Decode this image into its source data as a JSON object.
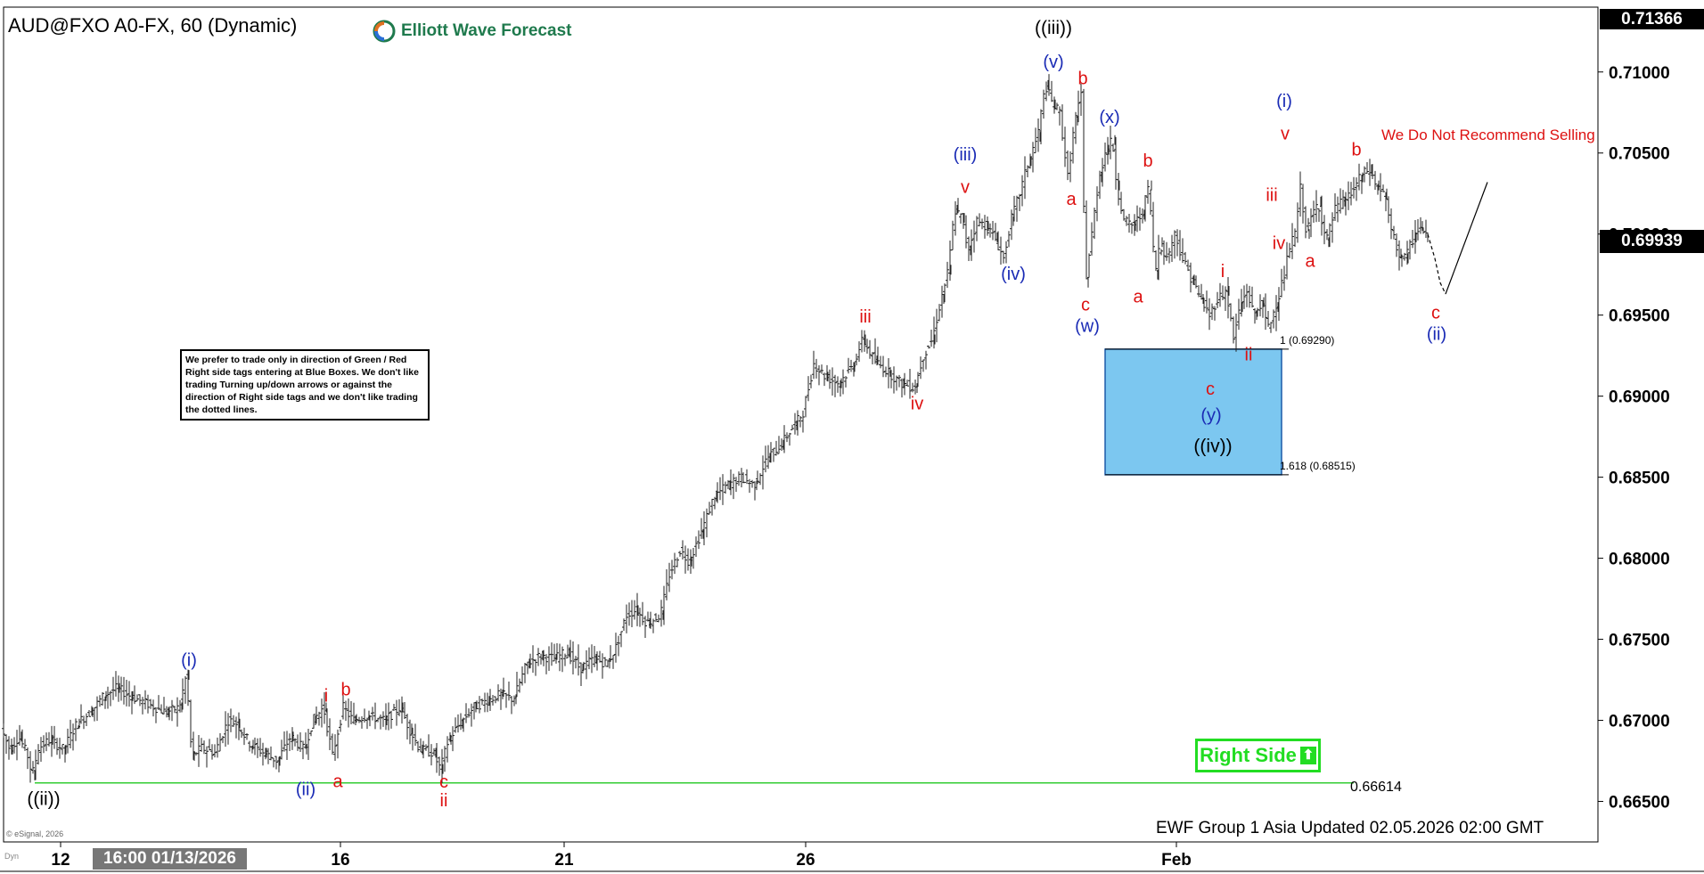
{
  "header": {
    "title": "AUD@FXO A0-FX, 60 (Dynamic)",
    "logo_text": "Elliott Wave Forecast"
  },
  "notice": {
    "text": "We prefer to trade only in direction of Green / Red Right side tags entering at Blue Boxes. We don't like trading Turning up/down arrows or against the direction of Right side tags and we don't like trading the dotted lines."
  },
  "footer": {
    "update_text": "EWF Group 1 Asia Updated 02.05.2026 02:00 GMT",
    "copyright": "© eSignal, 2026",
    "dyn_label": "Dyn"
  },
  "right_side": {
    "label": "Right Side",
    "color": "#22dd22"
  },
  "recommendation": {
    "text": "We Do Not Recommend Selling",
    "color": "#dd1111"
  },
  "price_axis": {
    "top_price": "0.71366",
    "current_price": "0.69939"
  },
  "time_axis": {
    "highlight_label": "16:00 01/13/2026"
  },
  "fib_levels": {
    "level_1": "1 (0.69290)",
    "level_1618": "1.618 (0.68515)",
    "support_label": "0.66614"
  },
  "colors": {
    "blue_label": "#1a2bb5",
    "red_label": "#dd1111",
    "black_label": "#000000",
    "blue_box_fill": "#7cc7f0",
    "blue_box_border": "#1b5aa8",
    "support_line": "#33cc33",
    "candles": "#222222"
  },
  "chart_data": {
    "type": "ohlc",
    "symbol": "AUD@FXO A0-FX",
    "interval": "60",
    "ylim": [
      0.6625,
      0.714
    ],
    "yticks": [
      0.665,
      0.67,
      0.675,
      0.68,
      0.685,
      0.69,
      0.695,
      0.7,
      0.705,
      0.71
    ],
    "ytick_labels": [
      "0.66500",
      "0.67000",
      "0.67500",
      "0.68000",
      "0.68500",
      "0.69000",
      "0.69500",
      "0.70000",
      "0.70500",
      "0.71000"
    ],
    "xticks": [
      "12",
      "16",
      "21",
      "26",
      "Feb"
    ],
    "price_path": [
      [
        0,
        0.6695
      ],
      [
        10,
        0.6682
      ],
      [
        20,
        0.669
      ],
      [
        30,
        0.6678
      ],
      [
        35,
        0.6666
      ],
      [
        42,
        0.6683
      ],
      [
        55,
        0.6688
      ],
      [
        70,
        0.6682
      ],
      [
        85,
        0.6698
      ],
      [
        100,
        0.6705
      ],
      [
        115,
        0.6715
      ],
      [
        130,
        0.672
      ],
      [
        145,
        0.6715
      ],
      [
        165,
        0.671
      ],
      [
        185,
        0.6705
      ],
      [
        200,
        0.6708
      ],
      [
        208,
        0.6728
      ],
      [
        214,
        0.6678
      ],
      [
        225,
        0.6683
      ],
      [
        240,
        0.668
      ],
      [
        255,
        0.67
      ],
      [
        265,
        0.6698
      ],
      [
        280,
        0.6685
      ],
      [
        295,
        0.668
      ],
      [
        310,
        0.6675
      ],
      [
        325,
        0.669
      ],
      [
        340,
        0.6682
      ],
      [
        350,
        0.67
      ],
      [
        362,
        0.6708
      ],
      [
        372,
        0.6678
      ],
      [
        384,
        0.6708
      ],
      [
        395,
        0.67
      ],
      [
        410,
        0.6703
      ],
      [
        430,
        0.67
      ],
      [
        448,
        0.6708
      ],
      [
        458,
        0.6695
      ],
      [
        470,
        0.6682
      ],
      [
        485,
        0.668
      ],
      [
        493,
        0.667
      ],
      [
        502,
        0.6688
      ],
      [
        515,
        0.6698
      ],
      [
        530,
        0.6708
      ],
      [
        545,
        0.6712
      ],
      [
        560,
        0.6716
      ],
      [
        575,
        0.6713
      ],
      [
        590,
        0.6735
      ],
      [
        605,
        0.674
      ],
      [
        620,
        0.6738
      ],
      [
        635,
        0.6742
      ],
      [
        650,
        0.6732
      ],
      [
        665,
        0.6738
      ],
      [
        680,
        0.6735
      ],
      [
        690,
        0.6745
      ],
      [
        702,
        0.6765
      ],
      [
        712,
        0.6768
      ],
      [
        725,
        0.676
      ],
      [
        740,
        0.6765
      ],
      [
        750,
        0.679
      ],
      [
        762,
        0.6805
      ],
      [
        772,
        0.6798
      ],
      [
        785,
        0.6815
      ],
      [
        800,
        0.6838
      ],
      [
        815,
        0.6845
      ],
      [
        830,
        0.685
      ],
      [
        845,
        0.6845
      ],
      [
        860,
        0.6862
      ],
      [
        875,
        0.687
      ],
      [
        890,
        0.6882
      ],
      [
        900,
        0.689
      ],
      [
        912,
        0.692
      ],
      [
        925,
        0.6912
      ],
      [
        940,
        0.6908
      ],
      [
        955,
        0.6918
      ],
      [
        967,
        0.6935
      ],
      [
        980,
        0.6922
      ],
      [
        995,
        0.6915
      ],
      [
        1010,
        0.6908
      ],
      [
        1025,
        0.6905
      ],
      [
        1035,
        0.6925
      ],
      [
        1045,
        0.6935
      ],
      [
        1055,
        0.696
      ],
      [
        1063,
        0.6978
      ],
      [
        1070,
        0.7015
      ],
      [
        1078,
        0.701
      ],
      [
        1085,
        0.699
      ],
      [
        1095,
        0.7008
      ],
      [
        1105,
        0.7005
      ],
      [
        1115,
        0.6998
      ],
      [
        1125,
        0.6985
      ],
      [
        1133,
        0.7008
      ],
      [
        1143,
        0.7025
      ],
      [
        1153,
        0.7045
      ],
      [
        1163,
        0.706
      ],
      [
        1172,
        0.7092
      ],
      [
        1180,
        0.708
      ],
      [
        1188,
        0.7075
      ],
      [
        1197,
        0.7035
      ],
      [
        1205,
        0.707
      ],
      [
        1212,
        0.7085
      ],
      [
        1217,
        0.697
      ],
      [
        1224,
        0.7
      ],
      [
        1232,
        0.7035
      ],
      [
        1240,
        0.7052
      ],
      [
        1247,
        0.7058
      ],
      [
        1252,
        0.703
      ],
      [
        1260,
        0.7008
      ],
      [
        1270,
        0.7005
      ],
      [
        1280,
        0.7012
      ],
      [
        1288,
        0.703
      ],
      [
        1295,
        0.6975
      ],
      [
        1300,
        0.6995
      ],
      [
        1308,
        0.6985
      ],
      [
        1317,
        0.7
      ],
      [
        1326,
        0.6985
      ],
      [
        1336,
        0.6972
      ],
      [
        1346,
        0.696
      ],
      [
        1356,
        0.695
      ],
      [
        1365,
        0.696
      ],
      [
        1375,
        0.6965
      ],
      [
        1383,
        0.6935
      ],
      [
        1390,
        0.6955
      ],
      [
        1398,
        0.6965
      ],
      [
        1406,
        0.695
      ],
      [
        1414,
        0.6958
      ],
      [
        1422,
        0.6942
      ],
      [
        1430,
        0.6955
      ],
      [
        1440,
        0.6975
      ],
      [
        1446,
        0.6992
      ],
      [
        1452,
        0.7
      ],
      [
        1458,
        0.7028
      ],
      [
        1465,
        0.7
      ],
      [
        1470,
        0.701
      ],
      [
        1478,
        0.702
      ],
      [
        1487,
        0.6995
      ],
      [
        1497,
        0.7015
      ],
      [
        1505,
        0.702
      ],
      [
        1515,
        0.7025
      ],
      [
        1525,
        0.7035
      ],
      [
        1535,
        0.704
      ],
      [
        1543,
        0.703
      ],
      [
        1552,
        0.7025
      ],
      [
        1560,
        0.7002
      ],
      [
        1568,
        0.6988
      ],
      [
        1576,
        0.6985
      ],
      [
        1585,
        0.6998
      ],
      [
        1592,
        0.7005
      ],
      [
        1598,
        0.6998
      ]
    ],
    "projection": {
      "dashed": [
        [
          1598,
          0.7
        ],
        [
          1606,
          0.6985
        ],
        [
          1612,
          0.697
        ],
        [
          1618,
          0.6963
        ]
      ],
      "solid": [
        [
          1618,
          0.6963
        ],
        [
          1665,
          0.7032
        ]
      ]
    },
    "blue_box": {
      "x_start": 1236,
      "x_end": 1434,
      "y_top": 0.6929,
      "y_bottom": 0.68515
    },
    "support_line": {
      "value": 0.66614,
      "x_start": 35,
      "x_end": 1515
    },
    "wave_labels": [
      {
        "text": "((ii))",
        "x": 45,
        "y": 0.6661,
        "color": "black",
        "dy": 24
      },
      {
        "text": "(i)",
        "x": 208,
        "y": 0.6728,
        "color": "blue",
        "dy": -10
      },
      {
        "text": "(ii)",
        "x": 339,
        "y": 0.6666,
        "color": "blue",
        "dy": 22
      },
      {
        "text": "i",
        "x": 362,
        "y": 0.6706,
        "color": "red",
        "dy": -10
      },
      {
        "text": "a",
        "x": 375,
        "y": 0.6671,
        "color": "red",
        "dy": 22
      },
      {
        "text": "b",
        "x": 384,
        "y": 0.671,
        "color": "red",
        "dy": -10
      },
      {
        "text": "c",
        "x": 494,
        "y": 0.6668,
        "color": "red",
        "dy": 17
      },
      {
        "text": "ii",
        "x": 494,
        "y": 0.6668,
        "color": "red",
        "dy": 38
      },
      {
        "text": "iii",
        "x": 967,
        "y": 0.694,
        "color": "red",
        "dy": -10
      },
      {
        "text": "iv",
        "x": 1025,
        "y": 0.6905,
        "color": "red",
        "dy": 24
      },
      {
        "text": "v",
        "x": 1079,
        "y": 0.702,
        "color": "red",
        "dy": -10
      },
      {
        "text": "(iii)",
        "x": 1079,
        "y": 0.704,
        "color": "blue",
        "dy": -10
      },
      {
        "text": "(iv)",
        "x": 1133,
        "y": 0.6985,
        "color": "blue",
        "dy": 24
      },
      {
        "text": "(v)",
        "x": 1178,
        "y": 0.7097,
        "color": "blue",
        "dy": -10
      },
      {
        "text": "((iii))",
        "x": 1178,
        "y": 0.7118,
        "color": "black",
        "dy": -10
      },
      {
        "text": "a",
        "x": 1198,
        "y": 0.703,
        "color": "red",
        "dy": 22
      },
      {
        "text": "b",
        "x": 1211,
        "y": 0.7087,
        "color": "red",
        "dy": -10
      },
      {
        "text": "c",
        "x": 1214,
        "y": 0.6965,
        "color": "red",
        "dy": 22
      },
      {
        "text": "(w)",
        "x": 1216,
        "y": 0.6955,
        "color": "blue",
        "dy": 28
      },
      {
        "text": "(x)",
        "x": 1241,
        "y": 0.7063,
        "color": "blue",
        "dy": -10
      },
      {
        "text": "b",
        "x": 1284,
        "y": 0.7036,
        "color": "red",
        "dy": -10
      },
      {
        "text": "a",
        "x": 1273,
        "y": 0.697,
        "color": "red",
        "dy": 22
      },
      {
        "text": "c",
        "x": 1354,
        "y": 0.6913,
        "color": "red",
        "dy": 22
      },
      {
        "text": "(y)",
        "x": 1355,
        "y": 0.6898,
        "color": "blue",
        "dy": 24
      },
      {
        "text": "((iv))",
        "x": 1357,
        "y": 0.6882,
        "color": "black",
        "dy": 30
      },
      {
        "text": "i",
        "x": 1368,
        "y": 0.6968,
        "color": "red",
        "dy": -10
      },
      {
        "text": "ii",
        "x": 1397,
        "y": 0.6932,
        "color": "red",
        "dy": 18
      },
      {
        "text": "iii",
        "x": 1423,
        "y": 0.7015,
        "color": "red",
        "dy": -10
      },
      {
        "text": "iv",
        "x": 1431,
        "y": 0.7003,
        "color": "red",
        "dy": 22
      },
      {
        "text": "v",
        "x": 1438,
        "y": 0.7053,
        "color": "red",
        "dy": -10
      },
      {
        "text": "(i)",
        "x": 1437,
        "y": 0.7073,
        "color": "blue",
        "dy": -10
      },
      {
        "text": "a",
        "x": 1466,
        "y": 0.6992,
        "color": "red",
        "dy": 22
      },
      {
        "text": "b",
        "x": 1518,
        "y": 0.7043,
        "color": "red",
        "dy": -10
      },
      {
        "text": "c",
        "x": 1607,
        "y": 0.696,
        "color": "red",
        "dy": 22
      },
      {
        "text": "(ii)",
        "x": 1608,
        "y": 0.695,
        "color": "blue",
        "dy": 28
      }
    ]
  }
}
